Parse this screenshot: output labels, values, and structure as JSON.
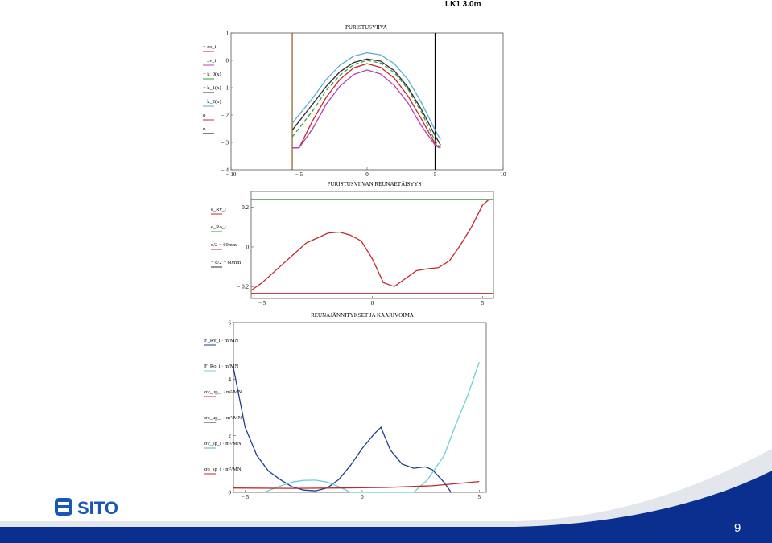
{
  "slide": {
    "title": "LK1 3.0m",
    "page_number": "9",
    "logo_text": "SITO",
    "colors": {
      "band_dark": "#0b2f8f",
      "band_light": "#e3e6ec",
      "logo": "#1a55b8"
    }
  },
  "chart_data": [
    {
      "type": "line",
      "title": "PURISTUSVIIVA",
      "xlim": [
        -10,
        10
      ],
      "ylim": [
        -4,
        1
      ],
      "x_ticks": [
        "− 10",
        "− 5",
        "0",
        "5",
        "10"
      ],
      "y_ticks": [
        "1",
        "0",
        "− 1",
        "− 2",
        "− 3",
        "− 4"
      ],
      "legend": [
        "− zo_i",
        "− zv_i",
        "− k_0(x)",
        "− k_1(x)",
        "− k_2(x)",
        "ϕ",
        "ϕ"
      ],
      "series": [
        {
          "color": "#c0282f",
          "dash": "",
          "x": [
            -5.5,
            -5.0,
            -4.0,
            -3.0,
            -2.0,
            -1.0,
            0.0,
            1.0,
            2.0,
            3.0,
            4.0,
            5.0,
            5.3
          ],
          "y": [
            -3.2,
            -3.2,
            -2.2,
            -1.35,
            -0.7,
            -0.28,
            -0.12,
            -0.26,
            -0.65,
            -1.3,
            -2.15,
            -3.05,
            -3.2
          ]
        },
        {
          "color": "#b73fb3",
          "dash": "",
          "x": [
            -5.5,
            -5.0,
            -4.0,
            -3.0,
            -2.0,
            -1.0,
            0.0,
            1.0,
            2.0,
            3.0,
            4.0,
            5.0,
            5.3
          ],
          "y": [
            -3.2,
            -3.2,
            -2.5,
            -1.6,
            -0.95,
            -0.52,
            -0.35,
            -0.5,
            -0.92,
            -1.55,
            -2.4,
            -3.1,
            -3.2
          ]
        },
        {
          "color": "#3c9a3c",
          "dash": "5,3",
          "x": [
            -5.5,
            -4.0,
            -3.0,
            -2.0,
            -1.0,
            0.0,
            1.0,
            2.0,
            3.0,
            4.0,
            5.0,
            5.4
          ],
          "y": [
            -2.8,
            -1.85,
            -1.1,
            -0.55,
            -0.16,
            0.0,
            -0.1,
            -0.45,
            -1.05,
            -1.9,
            -2.95,
            -3.2
          ]
        },
        {
          "color": "#2d2d2d",
          "dash": "",
          "x": [
            -5.5,
            -4.0,
            -3.0,
            -2.0,
            -1.0,
            0.0,
            1.0,
            2.0,
            3.0,
            4.0,
            5.0,
            5.4
          ],
          "y": [
            -2.55,
            -1.6,
            -0.95,
            -0.42,
            -0.08,
            0.05,
            -0.03,
            -0.38,
            -0.98,
            -1.8,
            -2.75,
            -3.1
          ]
        },
        {
          "color": "#5aaed6",
          "dash": "",
          "x": [
            -5.5,
            -4.0,
            -3.0,
            -2.0,
            -1.0,
            0.0,
            1.0,
            2.0,
            3.0,
            4.0,
            5.0,
            5.4
          ],
          "y": [
            -2.3,
            -1.38,
            -0.7,
            -0.18,
            0.15,
            0.28,
            0.2,
            -0.12,
            -0.7,
            -1.55,
            -2.55,
            -2.9
          ]
        }
      ],
      "vlines": [
        {
          "x": -5.5,
          "color": "#8a5a1a"
        },
        {
          "x": 5.0,
          "color": "#000000"
        }
      ]
    },
    {
      "type": "line",
      "title": "PURISTUSVIIVAN REUNAETÄISYYS",
      "xlim": [
        -5.5,
        5.5
      ],
      "ylim": [
        -0.26,
        0.28
      ],
      "x_ticks": [
        "− 5",
        "0",
        "5"
      ],
      "y_ticks": [
        "0.2",
        "0",
        "− 0.2"
      ],
      "legend": [
        "e_Rv_i",
        "e_Ro_i",
        "d/2 − 60mm",
        "− d/2 − 60mm"
      ],
      "series": [
        {
          "color": "#c0282f",
          "x": [
            -5.5,
            -5.0,
            -4.0,
            -3.0,
            -2.0,
            -1.5,
            -1.0,
            -0.5,
            0.0,
            0.5,
            1.0,
            1.5,
            2.0,
            2.5,
            3.0,
            3.5,
            4.0,
            4.5,
            5.0,
            5.3
          ],
          "y": [
            -0.22,
            -0.18,
            -0.08,
            0.02,
            0.07,
            0.075,
            0.06,
            0.03,
            -0.06,
            -0.18,
            -0.2,
            -0.16,
            -0.12,
            -0.11,
            -0.105,
            -0.07,
            0.01,
            0.1,
            0.21,
            0.24
          ]
        },
        {
          "color": "#3c9a3c",
          "x": [
            -5.5,
            5.5
          ],
          "y": [
            0.24,
            0.24
          ]
        },
        {
          "color": "#c0282f",
          "x": [
            -5.5,
            5.5
          ],
          "y": [
            -0.235,
            -0.235
          ]
        }
      ]
    },
    {
      "type": "line",
      "title": "REUNAJÄNNITYKSET JA KAARIVOIMA",
      "xlim": [
        -5.5,
        5.3
      ],
      "ylim": [
        0,
        6
      ],
      "x_ticks": [
        "− 5",
        "0",
        "5"
      ],
      "y_ticks": [
        "6",
        "4",
        "2",
        "0"
      ],
      "legend": [
        "F_Rv_i · m/MN",
        "F_Ro_i · m/MN",
        "σv_up_i · m²/MN",
        "σo_up_i · m²/MN",
        "σv_sp_i · m²/MN",
        "σo_sp_i · m²/MN"
      ],
      "series": [
        {
          "color": "#1f3f8a",
          "x": [
            -5.5,
            -5.0,
            -4.5,
            -4.0,
            -3.5,
            -3.0,
            -2.5,
            -2.0,
            -1.5,
            -1.0,
            -0.5,
            0.0,
            0.5,
            0.8,
            1.2,
            1.7,
            2.2,
            2.7,
            3.0,
            3.5,
            3.8
          ],
          "y": [
            4.4,
            2.3,
            1.3,
            0.75,
            0.45,
            0.2,
            0.08,
            0.05,
            0.15,
            0.45,
            0.95,
            1.55,
            2.05,
            2.3,
            1.5,
            1.0,
            0.85,
            0.9,
            0.8,
            0.35,
            0.0
          ]
        },
        {
          "color": "#6ecfd4",
          "x": [
            -4.2,
            -3.5,
            -3.0,
            -2.5,
            -2.0,
            -1.5,
            -1.0,
            -0.5,
            2.2,
            2.8,
            3.5,
            4.0,
            4.5,
            5.0
          ],
          "y": [
            0.0,
            0.22,
            0.36,
            0.42,
            0.43,
            0.36,
            0.2,
            0.0,
            0.0,
            0.45,
            1.3,
            2.4,
            3.4,
            4.6
          ]
        },
        {
          "color": "#c0282f",
          "x": [
            -5.5,
            -3.0,
            -1.0,
            1.0,
            3.0,
            5.0
          ],
          "y": [
            0.15,
            0.14,
            0.15,
            0.17,
            0.23,
            0.38
          ]
        }
      ]
    }
  ]
}
